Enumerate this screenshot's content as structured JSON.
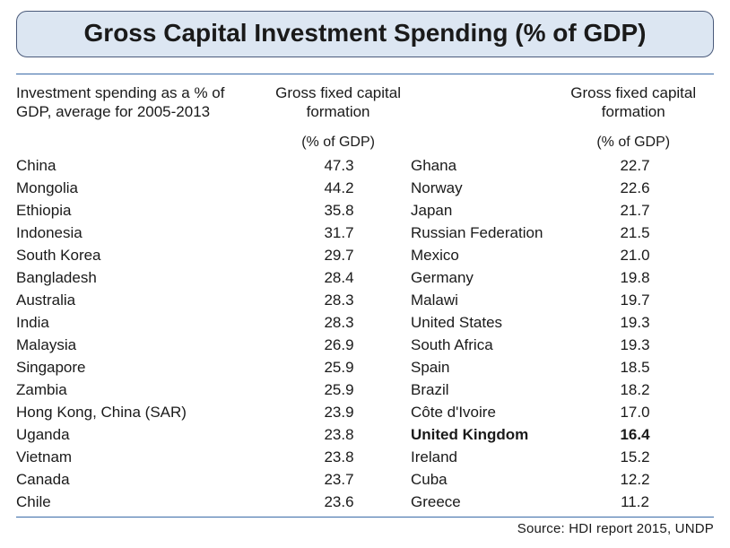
{
  "title": "Gross Capital Investment Spending (% of GDP)",
  "description": "Investment spending as a % of GDP, average for 2005-2013",
  "column_header": "Gross fixed capital formation",
  "column_sublabel": "(% of GDP)",
  "source": "Source: HDI report 2015, UNDP",
  "highlight_country": "United Kingdom",
  "colors": {
    "title_bg": "#dce6f2",
    "title_border": "#4a5a7a",
    "rule": "#3a6aa8",
    "text": "#1a1a1a",
    "page_bg": "#ffffff"
  },
  "left": [
    {
      "country": "China",
      "value": "47.3"
    },
    {
      "country": "Mongolia",
      "value": "44.2"
    },
    {
      "country": "Ethiopia",
      "value": "35.8"
    },
    {
      "country": "Indonesia",
      "value": "31.7"
    },
    {
      "country": "South Korea",
      "value": "29.7"
    },
    {
      "country": "Bangladesh",
      "value": "28.4"
    },
    {
      "country": "Australia",
      "value": "28.3"
    },
    {
      "country": "India",
      "value": "28.3"
    },
    {
      "country": "Malaysia",
      "value": "26.9"
    },
    {
      "country": "Singapore",
      "value": "25.9"
    },
    {
      "country": "Zambia",
      "value": "25.9"
    },
    {
      "country": "Hong Kong, China (SAR)",
      "value": "23.9"
    },
    {
      "country": "Uganda",
      "value": "23.8"
    },
    {
      "country": "Vietnam",
      "value": "23.8"
    },
    {
      "country": "Canada",
      "value": "23.7"
    },
    {
      "country": "Chile",
      "value": "23.6"
    }
  ],
  "right": [
    {
      "country": "Ghana",
      "value": "22.7"
    },
    {
      "country": "Norway",
      "value": "22.6"
    },
    {
      "country": "Japan",
      "value": "21.7"
    },
    {
      "country": "Russian Federation",
      "value": "21.5"
    },
    {
      "country": "Mexico",
      "value": "21.0"
    },
    {
      "country": "Germany",
      "value": "19.8"
    },
    {
      "country": "Malawi",
      "value": "19.7"
    },
    {
      "country": "United States",
      "value": "19.3"
    },
    {
      "country": "South Africa",
      "value": "19.3"
    },
    {
      "country": "Spain",
      "value": "18.5"
    },
    {
      "country": "Brazil",
      "value": "18.2"
    },
    {
      "country": "Côte d'Ivoire",
      "value": "17.0"
    },
    {
      "country": "United Kingdom",
      "value": "16.4"
    },
    {
      "country": "Ireland",
      "value": "15.2"
    },
    {
      "country": "Cuba",
      "value": "12.2"
    },
    {
      "country": "Greece",
      "value": "11.2"
    }
  ]
}
